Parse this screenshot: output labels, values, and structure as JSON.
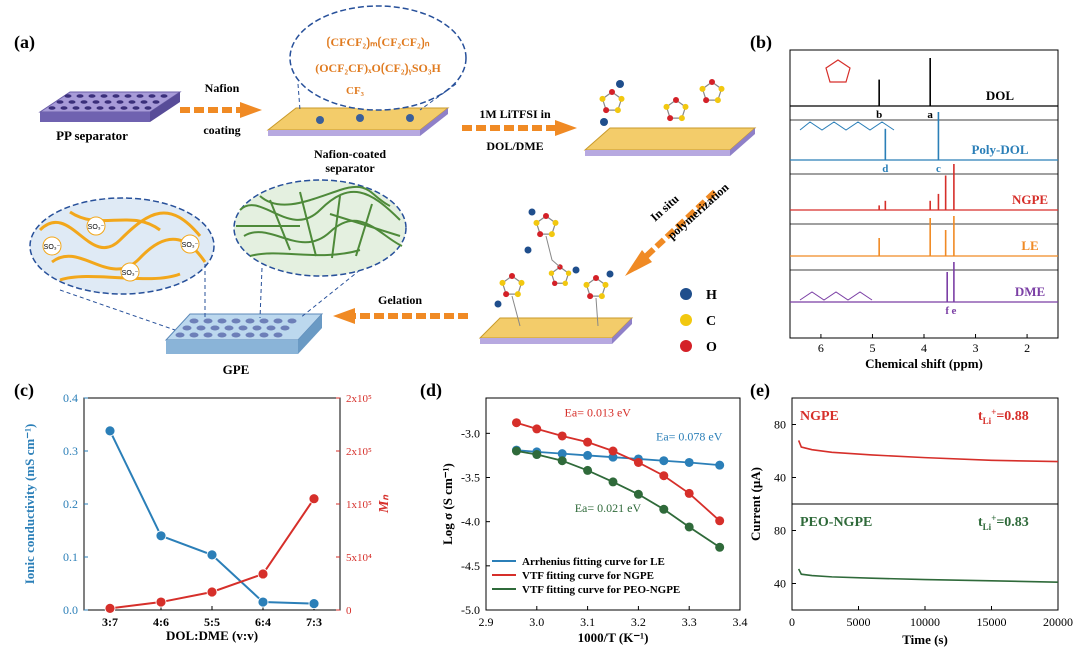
{
  "panel_labels": {
    "a": "(a)",
    "b": "(b)",
    "c": "(c)",
    "d": "(d)",
    "e": "(e)"
  },
  "panel_a": {
    "pp_separator": "PP separator",
    "nafion_coating": [
      "Nafion",
      "coating"
    ],
    "nafion_coated_separator": [
      "Nafion-coated",
      "separator"
    ],
    "litfsi": [
      "1M LiTFSI in",
      "DOL/DME"
    ],
    "in_situ": [
      "In situ",
      "polymerization"
    ],
    "gelation": "Gelation",
    "gpe": "GPE",
    "so3_label": "SO₃⁻",
    "nafion_formula": {
      "line1": "⟮CFCF₂⟯ₘ⟮CF₂CF₂⟯ₙ",
      "line2": "(OCF₂CF)ₓO⟮CF₂⟯ᵧSO₃H",
      "line3": "CF₃"
    },
    "legend": [
      {
        "label": "H",
        "color": "#1f4e8c"
      },
      {
        "label": "C",
        "color": "#f2c80f"
      },
      {
        "label": "O",
        "color": "#d42027"
      }
    ],
    "colors": {
      "arrow": "#f08a24",
      "membrane": "#f3cc6a",
      "pp": "#8c7ec8",
      "formula": "#e07b20",
      "dashed": "#27509a"
    }
  },
  "chart_data": [
    {
      "panel": "b",
      "type": "line",
      "xlabel": "Chemical shift (ppm)",
      "ylabel": "",
      "xlim": [
        6.6,
        1.4
      ],
      "xticks": [
        6,
        5,
        4,
        3,
        2
      ],
      "series": [
        {
          "name": "DOL",
          "color": "#000000",
          "peaks": [
            {
              "x": 3.88,
              "h": 1.0,
              "label": "a"
            },
            {
              "x": 4.87,
              "h": 0.55,
              "label": "b"
            }
          ]
        },
        {
          "name": "Poly-DOL",
          "color": "#2b7fb8",
          "peaks": [
            {
              "x": 3.72,
              "h": 1.0,
              "label": "c"
            },
            {
              "x": 4.75,
              "h": 0.65,
              "label": "d"
            }
          ]
        },
        {
          "name": "NGPE",
          "color": "#d62f2a",
          "peaks": [
            {
              "x": 3.42,
              "h": 1.0
            },
            {
              "x": 3.58,
              "h": 0.75
            },
            {
              "x": 3.72,
              "h": 0.35
            },
            {
              "x": 3.88,
              "h": 0.2
            },
            {
              "x": 4.75,
              "h": 0.2
            },
            {
              "x": 4.87,
              "h": 0.1
            }
          ]
        },
        {
          "name": "LE",
          "color": "#f08a24",
          "peaks": [
            {
              "x": 3.42,
              "h": 1.0
            },
            {
              "x": 3.58,
              "h": 0.65
            },
            {
              "x": 3.88,
              "h": 0.95
            },
            {
              "x": 4.87,
              "h": 0.45
            }
          ]
        },
        {
          "name": "DME",
          "color": "#7b3fa5",
          "peaks": [
            {
              "x": 3.42,
              "h": 1.0,
              "label": "e"
            },
            {
              "x": 3.55,
              "h": 0.75,
              "label": "f"
            }
          ]
        }
      ],
      "labels": [
        "a",
        "b",
        "c",
        "d",
        "e",
        "f"
      ]
    },
    {
      "panel": "c",
      "type": "line",
      "xlabel": "DOL:DME (v:v)",
      "categories": [
        "3:7",
        "4:6",
        "5:5",
        "6:4",
        "7:3"
      ],
      "ylabel_left": "Ionic conductivity (mS cm⁻¹)",
      "ylabel_right": "Mₙ",
      "ylim_left": [
        0,
        0.4
      ],
      "yticks_left": [
        "0.0",
        "0.1",
        "0.2",
        "0.3",
        "0.4"
      ],
      "ylim_right": [
        0,
        200000
      ],
      "yticks_right": [
        "0",
        "5x10⁴",
        "1x10⁵",
        "2x10⁵",
        "2x10⁵"
      ],
      "series": [
        {
          "name": "Ionic conductivity",
          "axis": "left",
          "color": "#2b7fb8",
          "values": [
            0.338,
            0.14,
            0.104,
            0.015,
            0.012
          ]
        },
        {
          "name": "Mn",
          "axis": "right",
          "color": "#d62f2a",
          "values": [
            1500,
            7500,
            17000,
            34000,
            105000
          ]
        }
      ]
    },
    {
      "panel": "d",
      "type": "scatter",
      "xlabel": "1000/T (K⁻¹)",
      "ylabel": "Log σ (S cm⁻¹)",
      "xlim": [
        2.9,
        3.4
      ],
      "xticks": [
        "2.9",
        "3.0",
        "3.1",
        "3.2",
        "3.3",
        "3.4"
      ],
      "ylim": [
        -5.0,
        -2.6
      ],
      "yticks": [
        "-3.0",
        "-3.5",
        "-4.0",
        "-4.5",
        "-5.0"
      ],
      "series": [
        {
          "name": "Arrhenius fitting curve for LE",
          "color": "#2b7fb8",
          "x": [
            2.96,
            3.0,
            3.05,
            3.1,
            3.15,
            3.2,
            3.25,
            3.3,
            3.36
          ],
          "y": [
            -3.19,
            -3.21,
            -3.23,
            -3.25,
            -3.27,
            -3.29,
            -3.31,
            -3.33,
            -3.36
          ]
        },
        {
          "name": "VTF fitting curve for NGPE",
          "color": "#d62f2a",
          "x": [
            2.96,
            3.0,
            3.05,
            3.1,
            3.15,
            3.2,
            3.25,
            3.3,
            3.36
          ],
          "y": [
            -2.88,
            -2.95,
            -3.03,
            -3.1,
            -3.2,
            -3.33,
            -3.48,
            -3.68,
            -3.99
          ]
        },
        {
          "name": "VTF fitting curve for PEO-NGPE",
          "color": "#2f6a3a",
          "x": [
            2.96,
            3.0,
            3.05,
            3.1,
            3.15,
            3.2,
            3.25,
            3.3,
            3.36
          ],
          "y": [
            -3.2,
            -3.24,
            -3.31,
            -3.42,
            -3.55,
            -3.69,
            -3.86,
            -4.06,
            -4.29
          ]
        }
      ],
      "annotations": [
        "Ea= 0.013 eV",
        "Ea= 0.078 eV",
        "Ea= 0.021 eV"
      ],
      "legend": "bottom-left"
    },
    {
      "panel": "e",
      "type": "line",
      "xlabel": "Time (s)",
      "ylabel": "Current (μA)",
      "xlim": [
        0,
        20000
      ],
      "xticks": [
        "0",
        "5000",
        "10000",
        "15000",
        "20000"
      ],
      "subplots": [
        {
          "name": "NGPE",
          "color": "#d62f2a",
          "ylim": [
            20,
            100
          ],
          "yticks": [
            "40",
            "80"
          ],
          "label": "NGPE",
          "t_li": "t",
          "t_li_sub": "Li",
          "t_li_sup": "+",
          "t_li_val": "=0.88",
          "x": [
            500,
            700,
            1500,
            3000,
            6000,
            10000,
            15000,
            20000
          ],
          "y": [
            68,
            63,
            61,
            59,
            57,
            55,
            53,
            52
          ]
        },
        {
          "name": "PEO-NGPE",
          "color": "#2f6a3a",
          "ylim": [
            20,
            100
          ],
          "yticks": [
            "40",
            "80"
          ],
          "label": "PEO-NGPE",
          "t_li": "t",
          "t_li_sub": "Li",
          "t_li_sup": "+",
          "t_li_val": "=0.83",
          "x": [
            500,
            700,
            1500,
            3000,
            6000,
            10000,
            15000,
            20000
          ],
          "y": [
            51,
            47,
            46,
            45,
            44,
            43,
            42,
            41
          ]
        }
      ]
    }
  ]
}
